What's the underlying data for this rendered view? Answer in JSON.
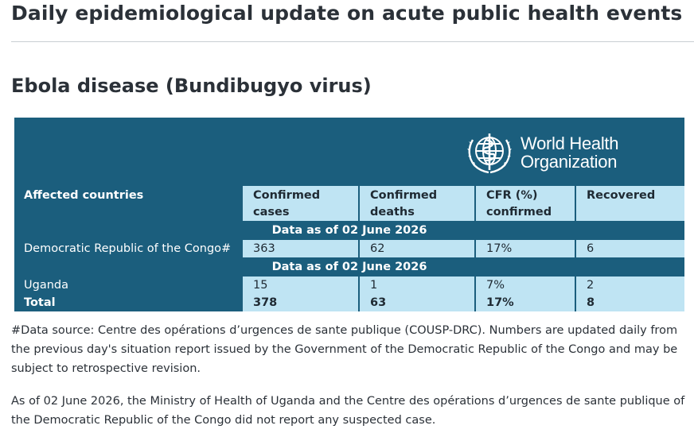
{
  "page": {
    "title": "Daily epidemiological update on acute public health events",
    "section_title": "Ebola disease (Bundibugyo virus)"
  },
  "logo": {
    "line1": "World Health",
    "line2": "Organization",
    "icon": "who-emblem-icon"
  },
  "table": {
    "headers": [
      "Affected countries",
      "Confirmed cases",
      "Confirmed deaths",
      "CFR (%) confirmed",
      "Recovered"
    ],
    "groups": [
      {
        "label": "Data as of 02 June 2026",
        "rows": [
          [
            "Democratic Republic of the Congo#",
            "363",
            "62",
            "17%",
            "6"
          ]
        ]
      },
      {
        "label": "Data as of 02 June 2026",
        "rows": [
          [
            "Uganda",
            "15",
            "1",
            "7%",
            "2"
          ]
        ]
      }
    ],
    "total": [
      "Total",
      "378",
      "63",
      "17%",
      "8"
    ]
  },
  "notes": {
    "source": "#Data source: Centre des opérations d’urgences de sante publique (COUSP-DRC). Numbers are updated daily from the previous day's situation report issued by the Government of the Democratic Republic of the Congo and may be subject to retrospective revision.",
    "statement": "As of 02 June 2026, the Ministry of Health of Uganda and the Centre des opérations d’urgences de sante publique of the Democratic Republic of the Congo did not report any suspected case."
  },
  "colors": {
    "primary": "#1b5e7d",
    "light": "#bfe4f3",
    "text": "#2b3138"
  }
}
